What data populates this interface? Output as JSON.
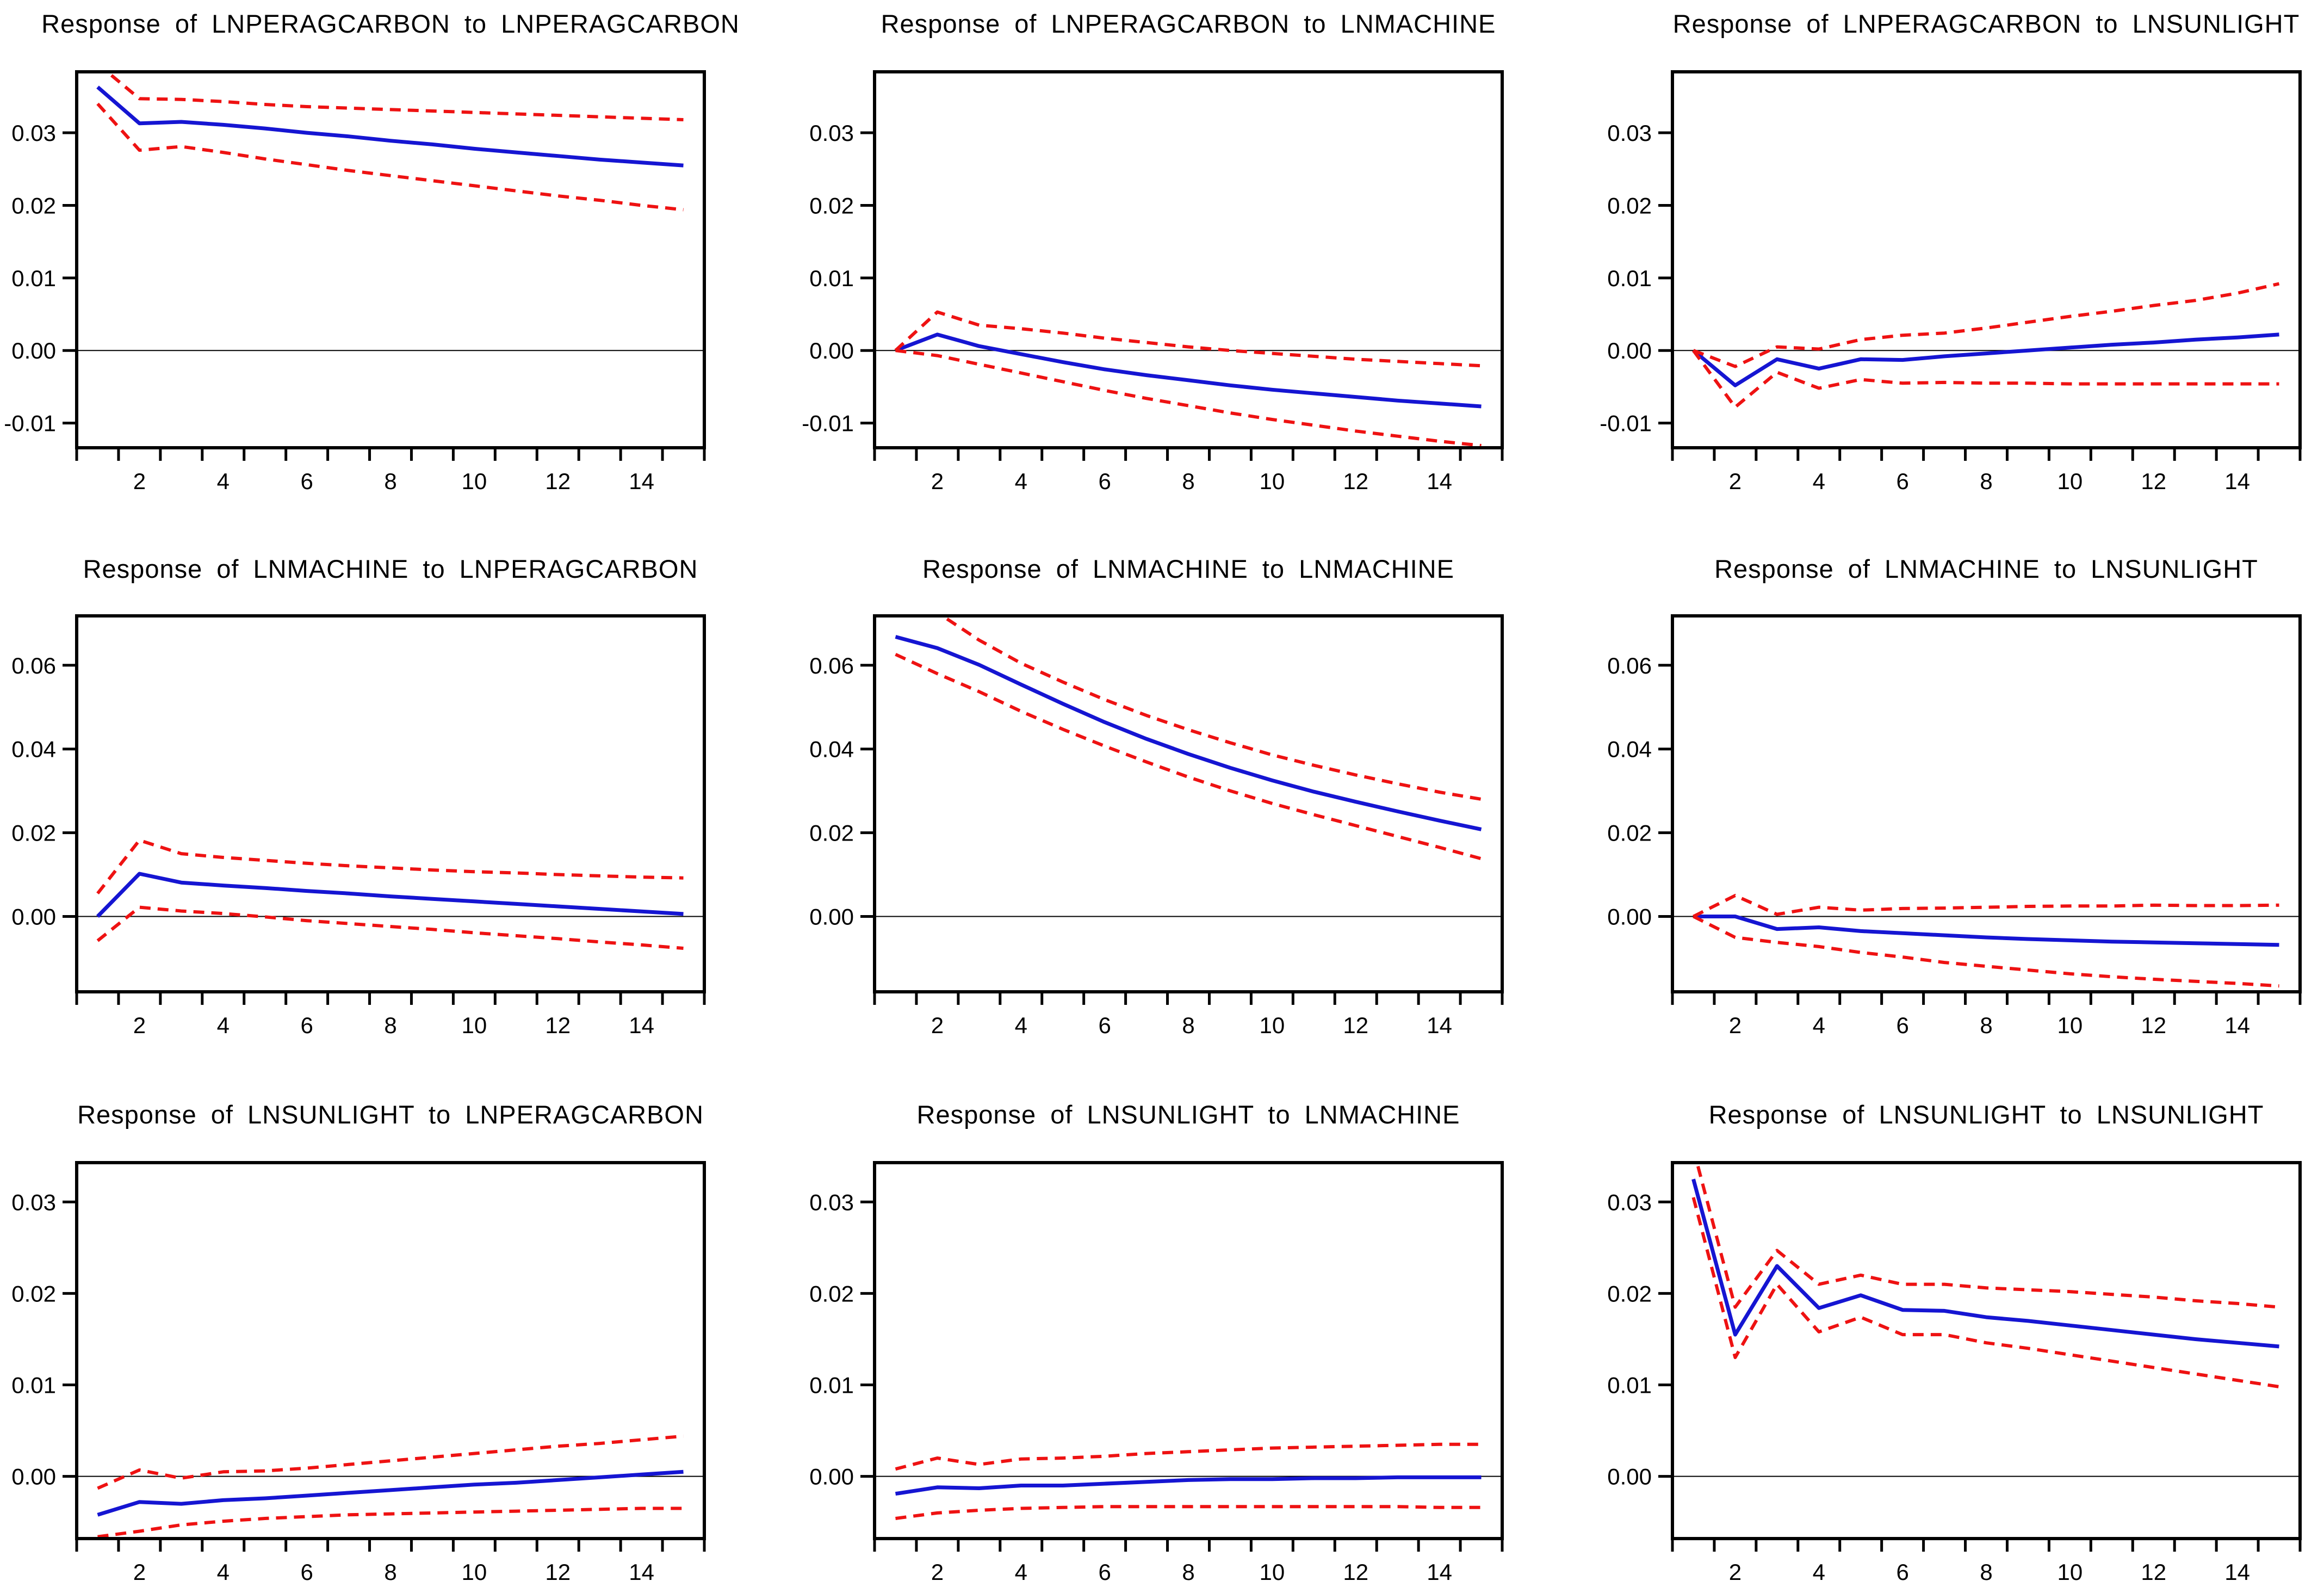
{
  "figure": {
    "background": "#ffffff",
    "text_color": "#000000"
  },
  "styles": {
    "response_color": "#1515d2",
    "band_color": "#ee1212",
    "zero_line_color": "#000000",
    "frame_color": "#000000"
  },
  "chart_data": [
    {
      "type": "line",
      "title": "Response of LNPERAGCARBON to LNPERAGCARBON",
      "x": [
        1,
        2,
        3,
        4,
        5,
        6,
        7,
        8,
        9,
        10,
        11,
        12,
        13,
        14,
        15
      ],
      "xlim": [
        0.5,
        15.5
      ],
      "ylim": [
        -0.0134,
        0.0384
      ],
      "yticks": [
        0.03,
        0.02,
        0.01,
        0.0,
        -0.01
      ],
      "xtick_labels": [
        2,
        4,
        6,
        8,
        10,
        12,
        14
      ],
      "zero_line": true,
      "legend": "none",
      "series": [
        {
          "name": "response",
          "style": "solid",
          "color": "#1515d2",
          "values": [
            0.0363,
            0.0313,
            0.0315,
            0.0311,
            0.0306,
            0.03,
            0.0295,
            0.0289,
            0.0284,
            0.0278,
            0.0273,
            0.0268,
            0.0263,
            0.0259,
            0.0255
          ]
        },
        {
          "name": "upper_band",
          "style": "dashed",
          "color": "#ee1212",
          "values": [
            0.0395,
            0.0347,
            0.0346,
            0.0343,
            0.0339,
            0.0336,
            0.0334,
            0.0332,
            0.033,
            0.0328,
            0.0326,
            0.0324,
            0.0322,
            0.032,
            0.0318
          ]
        },
        {
          "name": "lower_band",
          "style": "dashed",
          "color": "#ee1212",
          "values": [
            0.034,
            0.0276,
            0.0281,
            0.0273,
            0.0264,
            0.0256,
            0.0248,
            0.0241,
            0.0234,
            0.0227,
            0.022,
            0.0213,
            0.0207,
            0.02,
            0.0194
          ]
        }
      ]
    },
    {
      "type": "line",
      "title": "Response of LNPERAGCARBON to LNMACHINE",
      "x": [
        1,
        2,
        3,
        4,
        5,
        6,
        7,
        8,
        9,
        10,
        11,
        12,
        13,
        14,
        15
      ],
      "xlim": [
        0.5,
        15.5
      ],
      "ylim": [
        -0.0134,
        0.0384
      ],
      "yticks": [
        0.03,
        0.02,
        0.01,
        0.0,
        -0.01
      ],
      "xtick_labels": [
        2,
        4,
        6,
        8,
        10,
        12,
        14
      ],
      "zero_line": true,
      "legend": "none",
      "series": [
        {
          "name": "response",
          "style": "solid",
          "color": "#1515d2",
          "values": [
            0.0,
            0.0022,
            0.0006,
            -0.0005,
            -0.0016,
            -0.0026,
            -0.0034,
            -0.0041,
            -0.0048,
            -0.0054,
            -0.0059,
            -0.0064,
            -0.0069,
            -0.0073,
            -0.0077
          ]
        },
        {
          "name": "upper_band",
          "style": "dashed",
          "color": "#ee1212",
          "values": [
            0.0,
            0.0053,
            0.0035,
            0.003,
            0.0024,
            0.0017,
            0.0011,
            0.0005,
            0.0,
            -0.0004,
            -0.0008,
            -0.0012,
            -0.0015,
            -0.0018,
            -0.0021
          ]
        },
        {
          "name": "lower_band",
          "style": "dashed",
          "color": "#ee1212",
          "values": [
            0.0,
            -0.0007,
            -0.0019,
            -0.0031,
            -0.0043,
            -0.0055,
            -0.0066,
            -0.0076,
            -0.0086,
            -0.0095,
            -0.0103,
            -0.0111,
            -0.0118,
            -0.0125,
            -0.0131
          ]
        }
      ]
    },
    {
      "type": "line",
      "title": "Response of LNPERAGCARBON to LNSUNLIGHT",
      "x": [
        1,
        2,
        3,
        4,
        5,
        6,
        7,
        8,
        9,
        10,
        11,
        12,
        13,
        14,
        15
      ],
      "xlim": [
        0.5,
        15.5
      ],
      "ylim": [
        -0.0134,
        0.0384
      ],
      "yticks": [
        0.03,
        0.02,
        0.01,
        0.0,
        -0.01
      ],
      "xtick_labels": [
        2,
        4,
        6,
        8,
        10,
        12,
        14
      ],
      "zero_line": true,
      "legend": "none",
      "series": [
        {
          "name": "response",
          "style": "solid",
          "color": "#1515d2",
          "values": [
            0.0,
            -0.0048,
            -0.0012,
            -0.0025,
            -0.0012,
            -0.0013,
            -0.0008,
            -0.0004,
            0.0,
            0.0004,
            0.0008,
            0.0011,
            0.0015,
            0.0018,
            0.0022
          ]
        },
        {
          "name": "upper_band",
          "style": "dashed",
          "color": "#ee1212",
          "values": [
            0.0,
            -0.0022,
            0.0005,
            0.0002,
            0.0015,
            0.0021,
            0.0024,
            0.0031,
            0.0039,
            0.0047,
            0.0054,
            0.0062,
            0.0069,
            0.0079,
            0.0092
          ]
        },
        {
          "name": "lower_band",
          "style": "dashed",
          "color": "#ee1212",
          "values": [
            0.0,
            -0.0078,
            -0.003,
            -0.0052,
            -0.004,
            -0.0045,
            -0.0044,
            -0.0045,
            -0.0045,
            -0.0046,
            -0.0046,
            -0.0046,
            -0.0046,
            -0.0046,
            -0.0046
          ]
        }
      ]
    },
    {
      "type": "line",
      "title": "Response of LNMACHINE to LNPERAGCARBON",
      "x": [
        1,
        2,
        3,
        4,
        5,
        6,
        7,
        8,
        9,
        10,
        11,
        12,
        13,
        14,
        15
      ],
      "xlim": [
        0.5,
        15.5
      ],
      "ylim": [
        -0.018,
        0.0718
      ],
      "yticks": [
        0.06,
        0.04,
        0.02,
        0.0
      ],
      "xtick_labels": [
        2,
        4,
        6,
        8,
        10,
        12,
        14
      ],
      "zero_line": true,
      "legend": "none",
      "series": [
        {
          "name": "response",
          "style": "solid",
          "color": "#1515d2",
          "values": [
            0.0,
            0.0102,
            0.0081,
            0.0074,
            0.0068,
            0.0061,
            0.0055,
            0.0048,
            0.0042,
            0.0036,
            0.003,
            0.0024,
            0.0018,
            0.0012,
            0.0006
          ]
        },
        {
          "name": "upper_band",
          "style": "dashed",
          "color": "#ee1212",
          "values": [
            0.0055,
            0.0182,
            0.015,
            0.0141,
            0.0134,
            0.0127,
            0.0121,
            0.0116,
            0.0111,
            0.0107,
            0.0104,
            0.01,
            0.0097,
            0.0094,
            0.0092
          ]
        },
        {
          "name": "lower_band",
          "style": "dashed",
          "color": "#ee1212",
          "values": [
            -0.0058,
            0.0022,
            0.0013,
            0.0007,
            -0.0001,
            -0.001,
            -0.0017,
            -0.0024,
            -0.0031,
            -0.0039,
            -0.0046,
            -0.0053,
            -0.0061,
            -0.0068,
            -0.0076
          ]
        }
      ]
    },
    {
      "type": "line",
      "title": "Response of LNMACHINE to LNMACHINE",
      "x": [
        1,
        2,
        3,
        4,
        5,
        6,
        7,
        8,
        9,
        10,
        11,
        12,
        13,
        14,
        15
      ],
      "xlim": [
        0.5,
        15.5
      ],
      "ylim": [
        -0.018,
        0.0718
      ],
      "yticks": [
        0.06,
        0.04,
        0.02,
        0.0
      ],
      "xtick_labels": [
        2,
        4,
        6,
        8,
        10,
        12,
        14
      ],
      "zero_line": true,
      "legend": "none",
      "series": [
        {
          "name": "response",
          "style": "solid",
          "color": "#1515d2",
          "values": [
            0.0668,
            0.0641,
            0.0601,
            0.0554,
            0.0508,
            0.0464,
            0.0424,
            0.0388,
            0.0355,
            0.0325,
            0.0298,
            0.0274,
            0.0251,
            0.0229,
            0.0208
          ]
        },
        {
          "name": "upper_band",
          "style": "dashed",
          "color": "#ee1212",
          "values": [
            0.074,
            0.0726,
            0.066,
            0.0605,
            0.056,
            0.0518,
            0.048,
            0.0446,
            0.0415,
            0.0386,
            0.0361,
            0.0338,
            0.0317,
            0.0297,
            0.028
          ]
        },
        {
          "name": "lower_band",
          "style": "dashed",
          "color": "#ee1212",
          "values": [
            0.0626,
            0.058,
            0.0537,
            0.049,
            0.0447,
            0.0407,
            0.0369,
            0.0333,
            0.03,
            0.027,
            0.0243,
            0.0217,
            0.0191,
            0.0165,
            0.0138
          ]
        }
      ]
    },
    {
      "type": "line",
      "title": "Response of LNMACHINE to LNSUNLIGHT",
      "x": [
        1,
        2,
        3,
        4,
        5,
        6,
        7,
        8,
        9,
        10,
        11,
        12,
        13,
        14,
        15
      ],
      "xlim": [
        0.5,
        15.5
      ],
      "ylim": [
        -0.018,
        0.0718
      ],
      "yticks": [
        0.06,
        0.04,
        0.02,
        0.0
      ],
      "xtick_labels": [
        2,
        4,
        6,
        8,
        10,
        12,
        14
      ],
      "zero_line": true,
      "legend": "none",
      "series": [
        {
          "name": "response",
          "style": "solid",
          "color": "#1515d2",
          "values": [
            0.0,
            0.0,
            -0.003,
            -0.0026,
            -0.0035,
            -0.004,
            -0.0045,
            -0.005,
            -0.0054,
            -0.0057,
            -0.006,
            -0.0062,
            -0.0064,
            -0.0066,
            -0.0068
          ]
        },
        {
          "name": "upper_band",
          "style": "dashed",
          "color": "#ee1212",
          "values": [
            0.0,
            0.005,
            0.0005,
            0.0022,
            0.0015,
            0.0019,
            0.002,
            0.0022,
            0.0024,
            0.0025,
            0.0025,
            0.0027,
            0.0026,
            0.0026,
            0.0027
          ]
        },
        {
          "name": "lower_band",
          "style": "dashed",
          "color": "#ee1212",
          "values": [
            0.0,
            -0.005,
            -0.0062,
            -0.0072,
            -0.0086,
            -0.0097,
            -0.011,
            -0.0119,
            -0.0128,
            -0.0137,
            -0.0144,
            -0.015,
            -0.0155,
            -0.016,
            -0.0166
          ]
        }
      ]
    },
    {
      "type": "line",
      "title": "Response of LNSUNLIGHT to LNPERAGCARBON",
      "x": [
        1,
        2,
        3,
        4,
        5,
        6,
        7,
        8,
        9,
        10,
        11,
        12,
        13,
        14,
        15
      ],
      "xlim": [
        0.5,
        15.5
      ],
      "ylim": [
        -0.0068,
        0.0343
      ],
      "yticks": [
        0.03,
        0.02,
        0.01,
        0.0
      ],
      "xtick_labels": [
        2,
        4,
        6,
        8,
        10,
        12,
        14
      ],
      "zero_line": true,
      "legend": "none",
      "series": [
        {
          "name": "response",
          "style": "solid",
          "color": "#1515d2",
          "values": [
            -0.0042,
            -0.0028,
            -0.003,
            -0.0026,
            -0.0024,
            -0.0021,
            -0.0018,
            -0.0015,
            -0.0012,
            -0.0009,
            -0.0007,
            -0.0004,
            -0.0001,
            0.0002,
            0.0005
          ]
        },
        {
          "name": "upper_band",
          "style": "dashed",
          "color": "#ee1212",
          "values": [
            -0.0013,
            0.0007,
            -0.0002,
            0.0005,
            0.0006,
            0.0009,
            0.0013,
            0.0017,
            0.0021,
            0.0025,
            0.0029,
            0.0033,
            0.0036,
            0.004,
            0.0044
          ]
        },
        {
          "name": "lower_band",
          "style": "dashed",
          "color": "#ee1212",
          "values": [
            -0.0066,
            -0.006,
            -0.0053,
            -0.0049,
            -0.0046,
            -0.0044,
            -0.0042,
            -0.0041,
            -0.004,
            -0.0039,
            -0.0038,
            -0.0037,
            -0.0036,
            -0.0035,
            -0.0035
          ]
        }
      ]
    },
    {
      "type": "line",
      "title": "Response of LNSUNLIGHT to LNMACHINE",
      "x": [
        1,
        2,
        3,
        4,
        5,
        6,
        7,
        8,
        9,
        10,
        11,
        12,
        13,
        14,
        15
      ],
      "xlim": [
        0.5,
        15.5
      ],
      "ylim": [
        -0.0068,
        0.0343
      ],
      "yticks": [
        0.03,
        0.02,
        0.01,
        0.0
      ],
      "xtick_labels": [
        2,
        4,
        6,
        8,
        10,
        12,
        14
      ],
      "zero_line": true,
      "legend": "none",
      "series": [
        {
          "name": "response",
          "style": "solid",
          "color": "#1515d2",
          "values": [
            -0.0019,
            -0.0012,
            -0.0013,
            -0.001,
            -0.001,
            -0.0008,
            -0.0006,
            -0.0004,
            -0.0003,
            -0.0003,
            -0.0002,
            -0.0002,
            -0.0001,
            -0.0001,
            -0.0001
          ]
        },
        {
          "name": "upper_band",
          "style": "dashed",
          "color": "#ee1212",
          "values": [
            0.0008,
            0.002,
            0.0013,
            0.0019,
            0.002,
            0.0022,
            0.0025,
            0.0027,
            0.0029,
            0.0031,
            0.0032,
            0.0033,
            0.0034,
            0.0035,
            0.0035
          ]
        },
        {
          "name": "lower_band",
          "style": "dashed",
          "color": "#ee1212",
          "values": [
            -0.0046,
            -0.004,
            -0.0037,
            -0.0035,
            -0.0034,
            -0.0033,
            -0.0033,
            -0.0033,
            -0.0033,
            -0.0033,
            -0.0033,
            -0.0033,
            -0.0033,
            -0.0034,
            -0.0034
          ]
        }
      ]
    },
    {
      "type": "line",
      "title": "Response of LNSUNLIGHT to LNSUNLIGHT",
      "x": [
        1,
        2,
        3,
        4,
        5,
        6,
        7,
        8,
        9,
        10,
        11,
        12,
        13,
        14,
        15
      ],
      "xlim": [
        0.5,
        15.5
      ],
      "ylim": [
        -0.0068,
        0.0343
      ],
      "yticks": [
        0.03,
        0.02,
        0.01,
        0.0
      ],
      "xtick_labels": [
        2,
        4,
        6,
        8,
        10,
        12,
        14
      ],
      "zero_line": true,
      "legend": "none",
      "series": [
        {
          "name": "response",
          "style": "solid",
          "color": "#1515d2",
          "values": [
            0.0325,
            0.0155,
            0.023,
            0.0184,
            0.0198,
            0.0182,
            0.0181,
            0.0174,
            0.017,
            0.0165,
            0.016,
            0.0155,
            0.015,
            0.0146,
            0.0142
          ]
        },
        {
          "name": "upper_band",
          "style": "dashed",
          "color": "#ee1212",
          "values": [
            0.0358,
            0.0185,
            0.0247,
            0.021,
            0.022,
            0.021,
            0.021,
            0.0206,
            0.0204,
            0.0202,
            0.0199,
            0.0196,
            0.0192,
            0.0189,
            0.0185
          ]
        },
        {
          "name": "lower_band",
          "style": "dashed",
          "color": "#ee1212",
          "values": [
            0.0305,
            0.013,
            0.021,
            0.0158,
            0.0174,
            0.0155,
            0.0155,
            0.0146,
            0.014,
            0.0133,
            0.0126,
            0.0119,
            0.0112,
            0.0105,
            0.0098
          ]
        }
      ]
    }
  ]
}
